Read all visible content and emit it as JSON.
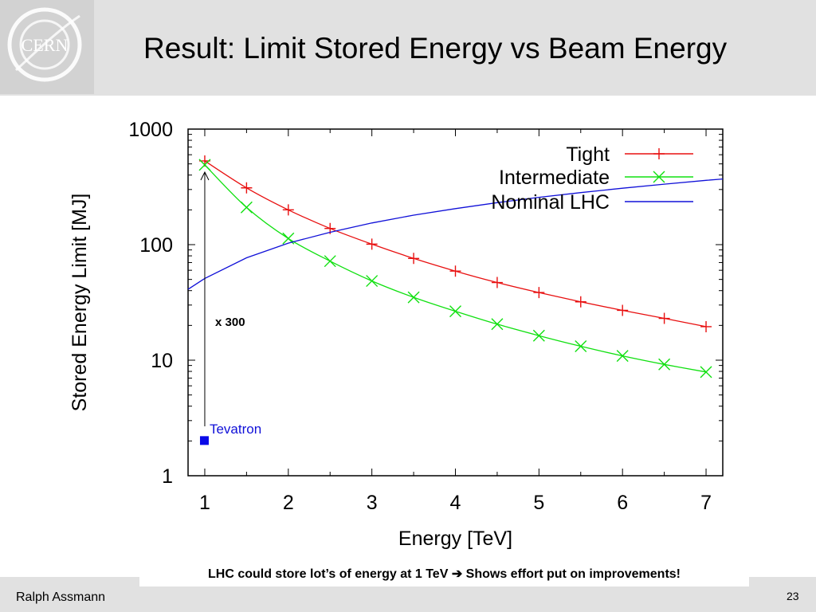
{
  "slide": {
    "title": "Result: Limit Stored Energy vs Beam Energy",
    "caption": "LHC could store lot’s of energy at 1 TeV ➔ Shows effort put on improvements!",
    "author": "Ralph Assmann",
    "page_number": "23",
    "logo_text": "CERN"
  },
  "chart_data": {
    "type": "line",
    "title": "",
    "xlabel": "Energy [TeV]",
    "ylabel": "Stored Energy Limit [MJ]",
    "xlim": [
      0.8,
      7.2
    ],
    "ylim": [
      1,
      1000
    ],
    "yscale": "log",
    "x_ticks": [
      "1",
      "2",
      "3",
      "4",
      "5",
      "6",
      "7"
    ],
    "y_ticks": [
      "1",
      "10",
      "100",
      "1000"
    ],
    "grid": false,
    "legend_position": "top-right",
    "series": [
      {
        "name": "Tight",
        "color": "#e81010",
        "marker": "plus",
        "x": [
          1,
          1.5,
          2,
          2.5,
          3,
          3.5,
          4,
          4.5,
          5,
          5.5,
          6,
          6.5,
          7
        ],
        "values": [
          530,
          310,
          200,
          138,
          101,
          76,
          59,
          47,
          38.5,
          32,
          27,
          23,
          19.5
        ]
      },
      {
        "name": "Intermediate",
        "color": "#10e010",
        "marker": "cross",
        "x": [
          1,
          1.5,
          2,
          2.5,
          3,
          3.5,
          4,
          4.5,
          5,
          5.5,
          6,
          6.5,
          7
        ],
        "values": [
          490,
          210,
          113,
          72,
          48.5,
          35,
          26.5,
          20.5,
          16.3,
          13.2,
          10.9,
          9.2,
          7.9
        ]
      },
      {
        "name": "Nominal LHC",
        "color": "#1010d8",
        "marker": "none",
        "x": [
          0.8,
          1,
          1.5,
          2,
          2.5,
          3,
          3.5,
          4,
          4.5,
          5,
          5.5,
          6,
          6.5,
          7,
          7.2
        ],
        "values": [
          41,
          51,
          77,
          103,
          128,
          154,
          180,
          205,
          231,
          257,
          282,
          308,
          334,
          360,
          370
        ]
      }
    ],
    "annotations": [
      {
        "text": "Tevatron",
        "x": 1,
        "y": 2,
        "color": "#1010d8"
      },
      {
        "text": "x 300"
      }
    ]
  }
}
